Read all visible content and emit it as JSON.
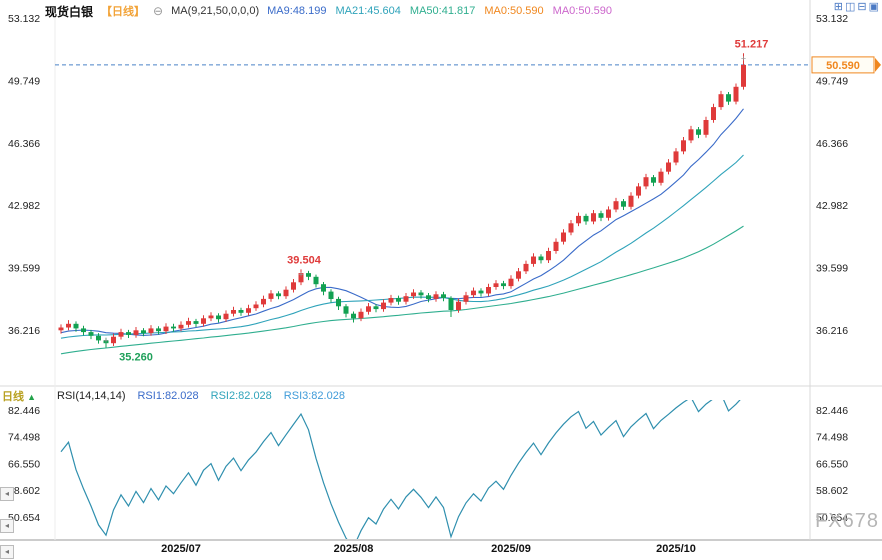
{
  "header": {
    "symbol": "现货白银",
    "period_tag": "【日线】",
    "collapse_icon": "⊖",
    "ma_label": "MA(9,21,50,0,0,0)",
    "ma_values": [
      {
        "label": "MA9:48.199",
        "color": "#3a6bc9"
      },
      {
        "label": "MA21:45.604",
        "color": "#2fa3ba"
      },
      {
        "label": "MA50:41.817",
        "color": "#2fae8f"
      },
      {
        "label": "MA0:50.590",
        "color": "#f0871e"
      },
      {
        "label": "MA0:50.590",
        "color": "#cc66cc"
      }
    ],
    "toolbar_icons": [
      {
        "name": "layout-grid-icon",
        "glyph": "⊞"
      },
      {
        "name": "layout-columns-icon",
        "glyph": "◫"
      },
      {
        "name": "layout-rows-icon",
        "glyph": "⊟"
      },
      {
        "name": "maximize-panel-icon",
        "glyph": "▣"
      }
    ]
  },
  "rsi_header": {
    "label": "RSI(14,14,14)",
    "values": [
      {
        "label": "RSI1:82.028",
        "color": "#3a6bc9"
      },
      {
        "label": "RSI2:82.028",
        "color": "#2fa3ba"
      },
      {
        "label": "RSI3:82.028",
        "color": "#3f9bd9"
      }
    ]
  },
  "left_tab": {
    "label": "日线",
    "arrow": "▲"
  },
  "nav": {
    "scroll_glyph": "◂"
  },
  "watermark": "FX678",
  "chart_data": {
    "type": "candlestick",
    "colors": {
      "up": "#df3a3a",
      "down": "#12a152",
      "ma9": "#3a6bc9",
      "ma21": "#2fa3ba",
      "ma50": "#2fae8f",
      "rsi": "#2f8fae",
      "price_line": "#4a82c8",
      "price_label": "#f0871e"
    },
    "x_labels": [
      {
        "label": "2025/07",
        "index": 16
      },
      {
        "label": "2025/08",
        "index": 39
      },
      {
        "label": "2025/09",
        "index": 60
      },
      {
        "label": "2025/10",
        "index": 82
      }
    ],
    "main": {
      "y_ticks": [
        "53.132",
        "49.749",
        "46.366",
        "42.982",
        "39.599",
        "36.216"
      ],
      "ma_periods": [
        9,
        21,
        50
      ],
      "price_line": {
        "value": 50.59,
        "label": "50.590"
      },
      "annotations": [
        {
          "text": "51.217",
          "color": "#df3a3a",
          "index": 91,
          "pos": "above",
          "dx": 8
        },
        {
          "text": "39.504",
          "color": "#df3a3a",
          "index": 32,
          "pos": "above",
          "dx": 3
        },
        {
          "text": "35.260",
          "color": "#1fa05a",
          "index": 6,
          "pos": "below",
          "dx": 30
        }
      ],
      "markers": [
        {
          "index": 6,
          "type": "low"
        },
        {
          "index": 32,
          "type": "high"
        },
        {
          "index": 91,
          "type": "high"
        }
      ],
      "prehistory_closes": [
        33.0,
        33.2,
        33.1,
        33.4,
        33.3,
        33.6,
        33.5,
        33.8,
        33.7,
        34.0,
        33.9,
        34.1,
        34.0,
        34.3,
        34.2,
        34.5,
        34.4,
        34.6,
        34.5,
        34.8,
        34.7,
        34.9,
        34.8,
        35.0,
        34.9,
        35.1,
        35.0,
        35.2,
        35.1,
        35.3,
        35.2,
        35.4,
        35.3,
        35.5,
        35.4,
        35.6,
        35.5,
        35.7,
        35.6,
        35.8,
        35.7,
        35.9,
        35.8,
        36.0,
        35.9,
        36.1,
        36.0,
        36.2,
        36.1,
        36.2
      ],
      "candles": [
        [
          36.2,
          36.52,
          36.02,
          36.35
        ],
        [
          36.35,
          36.75,
          36.2,
          36.55
        ],
        [
          36.55,
          36.68,
          36.12,
          36.3
        ],
        [
          36.3,
          36.45,
          35.92,
          36.1
        ],
        [
          36.1,
          36.22,
          35.72,
          35.9
        ],
        [
          35.9,
          36.05,
          35.48,
          35.65
        ],
        [
          35.65,
          35.8,
          35.26,
          35.5
        ],
        [
          35.5,
          36.02,
          35.35,
          35.85
        ],
        [
          35.85,
          36.28,
          35.7,
          36.1
        ],
        [
          36.1,
          36.22,
          35.78,
          35.95
        ],
        [
          35.95,
          36.38,
          35.8,
          36.2
        ],
        [
          36.2,
          36.32,
          35.88,
          36.05
        ],
        [
          36.05,
          36.48,
          35.9,
          36.3
        ],
        [
          36.3,
          36.42,
          35.98,
          36.15
        ],
        [
          36.15,
          36.58,
          36.0,
          36.4
        ],
        [
          36.4,
          36.55,
          36.12,
          36.3
        ],
        [
          36.3,
          36.68,
          36.15,
          36.5
        ],
        [
          36.5,
          36.88,
          36.35,
          36.7
        ],
        [
          36.7,
          36.82,
          36.38,
          36.55
        ],
        [
          36.55,
          37.02,
          36.4,
          36.85
        ],
        [
          36.85,
          37.18,
          36.7,
          37.0
        ],
        [
          37.0,
          37.12,
          36.62,
          36.8
        ],
        [
          36.8,
          37.28,
          36.65,
          37.1
        ],
        [
          37.1,
          37.48,
          36.95,
          37.3
        ],
        [
          37.3,
          37.42,
          36.98,
          37.15
        ],
        [
          37.15,
          37.58,
          37.0,
          37.4
        ],
        [
          37.4,
          37.78,
          37.25,
          37.6
        ],
        [
          37.6,
          38.08,
          37.45,
          37.9
        ],
        [
          37.9,
          38.38,
          37.75,
          38.2
        ],
        [
          38.2,
          38.32,
          37.88,
          38.05
        ],
        [
          38.05,
          38.58,
          37.9,
          38.4
        ],
        [
          38.4,
          38.98,
          38.25,
          38.8
        ],
        [
          38.8,
          39.504,
          38.65,
          39.3
        ],
        [
          39.3,
          39.42,
          38.92,
          39.1
        ],
        [
          39.1,
          39.22,
          38.52,
          38.7
        ],
        [
          38.7,
          38.82,
          38.1,
          38.3
        ],
        [
          38.3,
          38.42,
          37.7,
          37.9
        ],
        [
          37.9,
          38.02,
          37.3,
          37.5
        ],
        [
          37.5,
          37.62,
          36.9,
          37.1
        ],
        [
          37.1,
          37.22,
          36.62,
          36.85
        ],
        [
          36.85,
          37.38,
          36.7,
          37.2
        ],
        [
          37.2,
          37.68,
          37.05,
          37.5
        ],
        [
          37.5,
          37.62,
          37.18,
          37.35
        ],
        [
          37.35,
          37.88,
          37.2,
          37.7
        ],
        [
          37.7,
          38.12,
          37.55,
          37.95
        ],
        [
          37.95,
          38.08,
          37.58,
          37.75
        ],
        [
          37.75,
          38.22,
          37.6,
          38.05
        ],
        [
          38.05,
          38.42,
          37.9,
          38.25
        ],
        [
          38.25,
          38.38,
          37.92,
          38.1
        ],
        [
          38.1,
          38.22,
          37.72,
          37.9
        ],
        [
          37.9,
          38.32,
          37.75,
          38.15
        ],
        [
          38.15,
          38.28,
          37.78,
          37.95
        ],
        [
          37.95,
          38.05,
          36.92,
          37.3
        ],
        [
          37.3,
          37.92,
          37.15,
          37.75
        ],
        [
          37.75,
          38.28,
          37.6,
          38.1
        ],
        [
          38.1,
          38.52,
          37.95,
          38.35
        ],
        [
          38.35,
          38.48,
          38.02,
          38.2
        ],
        [
          38.2,
          38.72,
          38.05,
          38.55
        ],
        [
          38.55,
          38.92,
          38.4,
          38.75
        ],
        [
          38.75,
          38.88,
          38.42,
          38.6
        ],
        [
          38.6,
          39.18,
          38.45,
          39.0
        ],
        [
          39.0,
          39.58,
          38.85,
          39.4
        ],
        [
          39.4,
          39.98,
          39.25,
          39.8
        ],
        [
          39.8,
          40.38,
          39.65,
          40.2
        ],
        [
          40.2,
          40.32,
          39.82,
          40.0
        ],
        [
          40.0,
          40.68,
          39.85,
          40.5
        ],
        [
          40.5,
          41.18,
          40.35,
          41.0
        ],
        [
          41.0,
          41.68,
          40.85,
          41.5
        ],
        [
          41.5,
          42.18,
          41.35,
          42.0
        ],
        [
          42.0,
          42.58,
          41.85,
          42.4
        ],
        [
          42.4,
          42.52,
          41.92,
          42.1
        ],
        [
          42.1,
          42.72,
          41.95,
          42.55
        ],
        [
          42.55,
          42.68,
          42.12,
          42.3
        ],
        [
          42.3,
          42.92,
          42.15,
          42.75
        ],
        [
          42.75,
          43.38,
          42.6,
          43.2
        ],
        [
          43.2,
          43.32,
          42.72,
          42.9
        ],
        [
          42.9,
          43.68,
          42.75,
          43.5
        ],
        [
          43.5,
          44.18,
          43.35,
          44.0
        ],
        [
          44.0,
          44.68,
          43.85,
          44.5
        ],
        [
          44.5,
          44.62,
          44.02,
          44.2
        ],
        [
          44.2,
          44.98,
          44.05,
          44.8
        ],
        [
          44.8,
          45.48,
          44.65,
          45.3
        ],
        [
          45.3,
          46.08,
          45.15,
          45.9
        ],
        [
          45.9,
          46.68,
          45.75,
          46.5
        ],
        [
          46.5,
          47.28,
          46.35,
          47.1
        ],
        [
          47.1,
          47.22,
          46.62,
          46.8
        ],
        [
          46.8,
          47.78,
          46.65,
          47.6
        ],
        [
          47.6,
          48.48,
          47.45,
          48.3
        ],
        [
          48.3,
          49.18,
          48.15,
          49.0
        ],
        [
          49.0,
          49.12,
          48.42,
          48.6
        ],
        [
          48.6,
          49.58,
          48.45,
          49.4
        ],
        [
          49.4,
          51.217,
          49.25,
          50.59
        ]
      ]
    },
    "rsi": {
      "period": 14,
      "y_ticks": [
        "82.446",
        "74.498",
        "66.550",
        "58.602",
        "50.654"
      ]
    }
  }
}
